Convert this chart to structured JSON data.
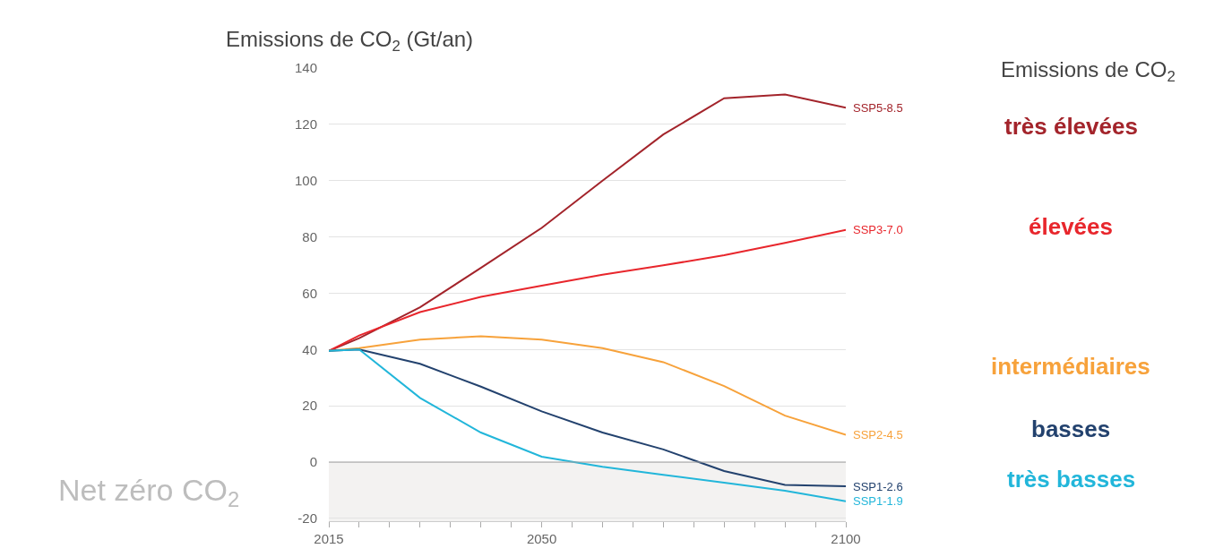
{
  "chart_data": {
    "type": "line",
    "ylabel": "Emissions de CO$_{2}$ (Gt/an)",
    "x": [
      2015,
      2020,
      2030,
      2040,
      2050,
      2060,
      2070,
      2080,
      2090,
      2100
    ],
    "series": [
      {
        "name": "SSP5-8.5",
        "color": "#a3242b",
        "values": [
          39.5,
          44,
          55,
          69,
          83.2,
          100,
          116.4,
          129.3,
          130.6,
          125.9
        ]
      },
      {
        "name": "SSP3-7.0",
        "color": "#e8262c",
        "values": [
          39.5,
          45,
          53.3,
          58.7,
          62.7,
          66.6,
          69.9,
          73.5,
          77.9,
          82.5
        ]
      },
      {
        "name": "SSP2-4.5",
        "color": "#f7a23b",
        "values": [
          39.5,
          40.5,
          43.5,
          44.7,
          43.5,
          40.5,
          35.5,
          27,
          16.5,
          9.7
        ]
      },
      {
        "name": "SSP1-2.6",
        "color": "#23426e",
        "values": [
          39.5,
          40,
          34.9,
          26.8,
          18,
          10.5,
          4.5,
          -3.2,
          -8.1,
          -8.6
        ]
      },
      {
        "name": "SSP1-1.9",
        "color": "#22b6da",
        "values": [
          39.5,
          40,
          22.8,
          10.5,
          1.9,
          -1.7,
          -4.5,
          -7.3,
          -10.2,
          -13.9
        ]
      }
    ],
    "xlim": [
      2015,
      2100
    ],
    "xticks": [
      2015,
      {
        "value": 2020,
        "label": null
      },
      {
        "value": 2025,
        "label": null
      },
      {
        "value": 2030,
        "label": null
      },
      {
        "value": 2035,
        "label": null
      },
      {
        "value": 2040,
        "label": null
      },
      {
        "value": 2045,
        "label": null
      },
      2050,
      {
        "value": 2055,
        "label": null
      },
      {
        "value": 2060,
        "label": null
      },
      {
        "value": 2065,
        "label": null
      },
      {
        "value": 2070,
        "label": null
      },
      {
        "value": 2075,
        "label": null
      },
      {
        "value": 2080,
        "label": null
      },
      {
        "value": 2085,
        "label": null
      },
      {
        "value": 2090,
        "label": null
      },
      {
        "value": 2095,
        "label": null
      },
      2100
    ],
    "ylim": [
      -21,
      140
    ],
    "yticks": [
      -20,
      0,
      20,
      40,
      60,
      80,
      100,
      120,
      140
    ],
    "grid": "y",
    "legend": false,
    "marker": "none",
    "line_style": "solid",
    "ref_lines": [
      {
        "axis": "y",
        "value": 0,
        "color": "#a0a0a0"
      }
    ],
    "bands": [
      {
        "axis": "y",
        "from": -21,
        "to": 0,
        "label": "Net zéro CO$_{2}$",
        "color": "#f3f2f1"
      }
    ],
    "annotations": [
      "Emissions de CO$_{2}$",
      "très élevées",
      "élevées",
      "intermédiaires",
      "basses",
      "très basses"
    ]
  }
}
